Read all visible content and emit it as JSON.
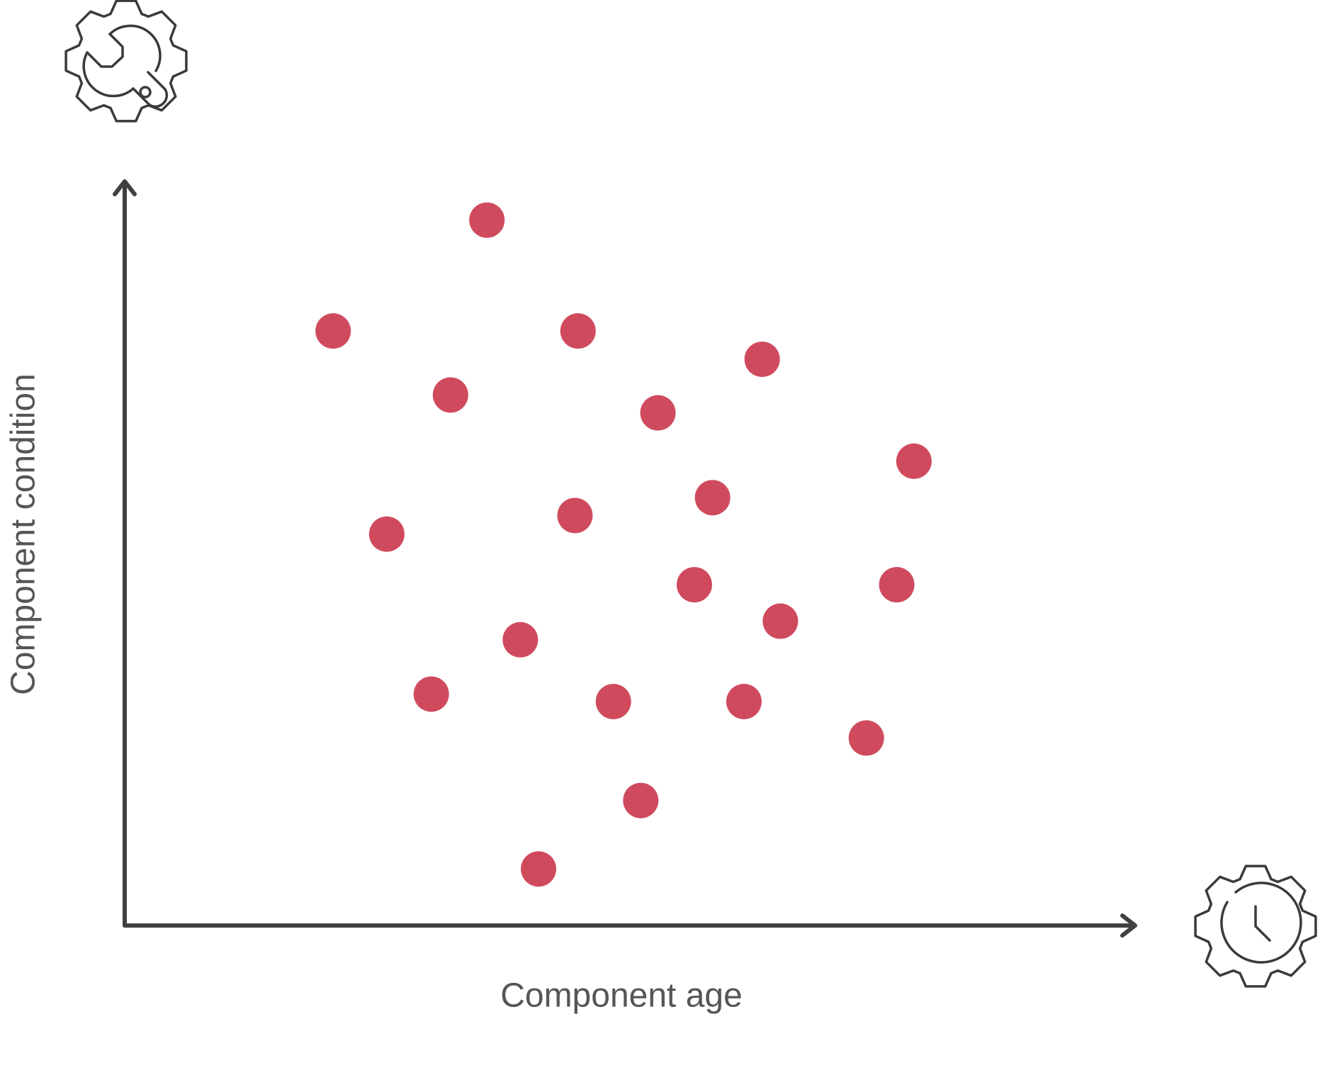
{
  "chart_data": {
    "type": "scatter",
    "x_label": "Component age",
    "y_label": "Component condition",
    "x": [
      35.8,
      20.6,
      44.8,
      63.0,
      32.2,
      52.7,
      78.0,
      58.1,
      25.9,
      44.5,
      56.3,
      76.3,
      64.8,
      39.1,
      30.3,
      48.3,
      61.2,
      73.3,
      51.0,
      40.9
    ],
    "values": [
      94.8,
      79.9,
      79.9,
      76.1,
      71.3,
      68.9,
      62.4,
      57.5,
      52.6,
      55.1,
      45.8,
      45.8,
      40.9,
      38.4,
      31.1,
      30.1,
      30.1,
      25.2,
      16.8,
      7.6
    ],
    "color": "#d04a5e",
    "xlim": [
      0,
      100
    ],
    "ylim": [
      0,
      100
    ],
    "grid": false
  }
}
